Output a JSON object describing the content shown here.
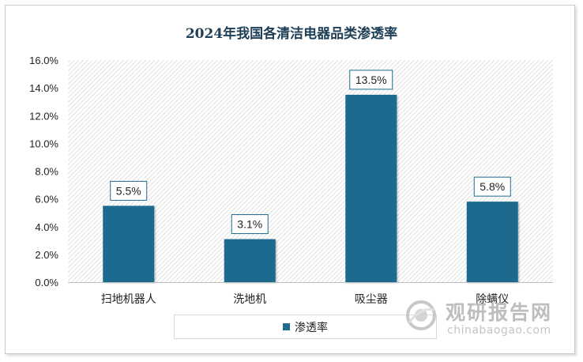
{
  "chart_data": {
    "type": "bar",
    "title": "2024年我国各清洁电器品类渗透率",
    "categories": [
      "扫地机器人",
      "洗地机",
      "吸尘器",
      "除螨仪"
    ],
    "series": [
      {
        "name": "渗透率",
        "values": [
          5.5,
          3.1,
          13.5,
          5.8
        ],
        "color": "#1e6b8e"
      }
    ],
    "data_labels": [
      "5.5%",
      "3.1%",
      "13.5%",
      "5.8%"
    ],
    "y_ticks": [
      "0.0%",
      "2.0%",
      "4.0%",
      "6.0%",
      "8.0%",
      "10.0%",
      "12.0%",
      "14.0%",
      "16.0%"
    ],
    "ylim": [
      0,
      16
    ],
    "ystep": 2,
    "grid": false,
    "plot_background": "hatched-grey",
    "legend_position": "bottom"
  },
  "watermark": {
    "cn": "观研报告网",
    "en": "chinabaogao.com"
  }
}
